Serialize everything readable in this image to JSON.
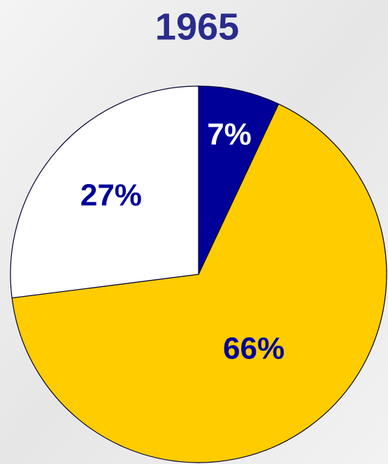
{
  "chart_data": {
    "type": "pie",
    "title": "1965",
    "values": [
      7,
      66,
      27
    ],
    "value_labels": [
      "7%",
      "66%",
      "27%"
    ],
    "colors": [
      "#000099",
      "#ffcc00",
      "#ffffff"
    ],
    "label_colors": [
      "#ffffff",
      "#000099",
      "#000099"
    ]
  }
}
